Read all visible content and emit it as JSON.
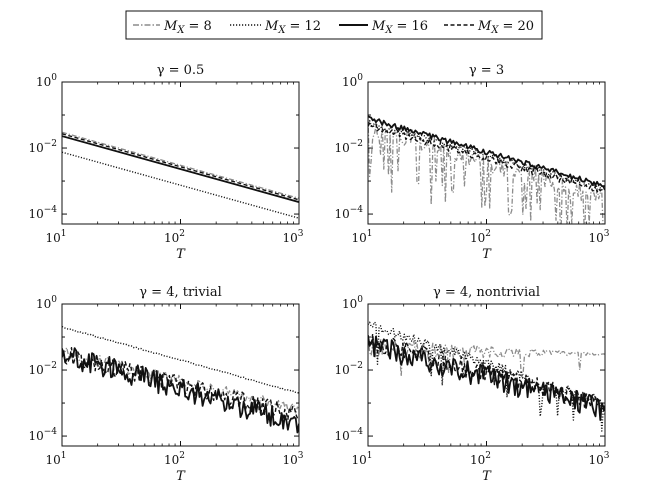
{
  "legend": {
    "entries": [
      {
        "var": "M",
        "sub": "X",
        "value": "= 8",
        "color": "#8c8c8c",
        "style": "dashdot"
      },
      {
        "var": "M",
        "sub": "X",
        "value": "= 12",
        "color": "#111111",
        "style": "dotted"
      },
      {
        "var": "M",
        "sub": "X",
        "value": "= 16",
        "color": "#111111",
        "style": "solid"
      },
      {
        "var": "M",
        "sub": "X",
        "value": "= 20",
        "color": "#111111",
        "style": "dashed"
      }
    ]
  },
  "chart_data": [
    {
      "type": "line",
      "title": "γ = 0.5",
      "xlabel": "T",
      "xscale": "log",
      "yscale": "log",
      "xlim": [
        10,
        1000
      ],
      "ylim": [
        5e-05,
        1
      ],
      "xticks": [
        {
          "base": "10",
          "exp": "1"
        },
        {
          "base": "10",
          "exp": "2"
        },
        {
          "base": "10",
          "exp": "3"
        }
      ],
      "yticks": [
        {
          "base": "10",
          "exp": "0"
        },
        {
          "base": "10",
          "exp": "−2"
        },
        {
          "base": "10",
          "exp": "−4"
        }
      ],
      "series": [
        {
          "name": "M_X = 8",
          "kind": "power",
          "x": [
            10,
            1000
          ],
          "y": [
            0.03,
            0.0003
          ]
        },
        {
          "name": "M_X = 12",
          "kind": "power",
          "x": [
            10,
            1000
          ],
          "y": [
            0.0075,
            7.5e-05
          ]
        },
        {
          "name": "M_X = 16",
          "kind": "power",
          "x": [
            10,
            1000
          ],
          "y": [
            0.023,
            0.00023
          ]
        },
        {
          "name": "M_X = 20",
          "kind": "power",
          "x": [
            10,
            1000
          ],
          "y": [
            0.027,
            0.00027
          ]
        }
      ]
    },
    {
      "type": "line",
      "title": "γ = 3",
      "xlabel": "T",
      "xscale": "log",
      "yscale": "log",
      "xlim": [
        10,
        1000
      ],
      "ylim": [
        5e-05,
        1
      ],
      "xticks": [
        {
          "base": "10",
          "exp": "1"
        },
        {
          "base": "10",
          "exp": "2"
        },
        {
          "base": "10",
          "exp": "3"
        }
      ],
      "yticks": [
        {
          "base": "10",
          "exp": "0"
        },
        {
          "base": "10",
          "exp": "−2"
        },
        {
          "base": "10",
          "exp": "−4"
        }
      ],
      "series": [
        {
          "name": "M_X = 8",
          "kind": "noisy",
          "x": [
            10,
            1000
          ],
          "y": [
            0.045,
            0.0003
          ],
          "noise": 0.3,
          "seed": 11,
          "spikes": 0.2,
          "spikeDepth": 1.7
        },
        {
          "name": "M_X = 12",
          "kind": "noisy",
          "x": [
            10,
            1000
          ],
          "y": [
            0.06,
            0.0006
          ],
          "noise": 0.1,
          "seed": 12,
          "spikes": 0,
          "spikeDepth": 0
        },
        {
          "name": "M_X = 16",
          "kind": "noisy",
          "x": [
            10,
            1000
          ],
          "y": [
            0.08,
            0.0007
          ],
          "noise": 0.08,
          "seed": 13,
          "spikes": 0,
          "spikeDepth": 0
        },
        {
          "name": "M_X = 20",
          "kind": "noisy",
          "x": [
            10,
            1000
          ],
          "y": [
            0.05,
            0.0005
          ],
          "noise": 0.12,
          "seed": 14,
          "spikes": 0,
          "spikeDepth": 0
        }
      ]
    },
    {
      "type": "line",
      "title": "γ = 4, trivial",
      "xlabel": "T",
      "xscale": "log",
      "yscale": "log",
      "xlim": [
        10,
        1000
      ],
      "ylim": [
        5e-05,
        1
      ],
      "xticks": [
        {
          "base": "10",
          "exp": "1"
        },
        {
          "base": "10",
          "exp": "2"
        },
        {
          "base": "10",
          "exp": "3"
        }
      ],
      "yticks": [
        {
          "base": "10",
          "exp": "0"
        },
        {
          "base": "10",
          "exp": "−2"
        },
        {
          "base": "10",
          "exp": "−4"
        }
      ],
      "series": [
        {
          "name": "M_X = 8",
          "kind": "noisy",
          "x": [
            10,
            1000
          ],
          "y": [
            0.035,
            0.0006
          ],
          "noise": 0.18,
          "seed": 21,
          "spikes": 0,
          "spikeDepth": 0
        },
        {
          "name": "M_X = 12",
          "kind": "noisy",
          "x": [
            10,
            1000
          ],
          "y": [
            0.2,
            0.002
          ],
          "noise": 0.02,
          "seed": 22,
          "spikes": 0,
          "spikeDepth": 0
        },
        {
          "name": "M_X = 16",
          "kind": "noisy",
          "x": [
            10,
            1000
          ],
          "y": [
            0.03,
            0.00025
          ],
          "noise": 0.35,
          "seed": 23,
          "spikes": 0,
          "spikeDepth": 0
        },
        {
          "name": "M_X = 20",
          "kind": "noisy",
          "x": [
            10,
            1000
          ],
          "y": [
            0.03,
            0.0004
          ],
          "noise": 0.28,
          "seed": 24,
          "spikes": 0,
          "spikeDepth": 0
        }
      ]
    },
    {
      "type": "line",
      "title": "γ = 4, nontrivial",
      "xlabel": "T",
      "xscale": "log",
      "yscale": "log",
      "xlim": [
        10,
        1000
      ],
      "ylim": [
        5e-05,
        1
      ],
      "xticks": [
        {
          "base": "10",
          "exp": "1"
        },
        {
          "base": "10",
          "exp": "2"
        },
        {
          "base": "10",
          "exp": "3"
        }
      ],
      "yticks": [
        {
          "base": "10",
          "exp": "0"
        },
        {
          "base": "10",
          "exp": "−2"
        },
        {
          "base": "10",
          "exp": "−4"
        }
      ],
      "series": [
        {
          "name": "M_X = 8",
          "kind": "plateau",
          "x": [
            10,
            1000
          ],
          "y": [
            0.05,
            0.03
          ],
          "noise": 0.3,
          "seed": 31,
          "spikes": 0.08,
          "spikeDepth": 0.7
        },
        {
          "name": "M_X = 12",
          "kind": "noisy",
          "x": [
            10,
            1000
          ],
          "y": [
            0.25,
            0.001
          ],
          "noise": 0.15,
          "seed": 32,
          "spikes": 0.04,
          "spikeDepth": 1.2
        },
        {
          "name": "M_X = 16",
          "kind": "noisy",
          "x": [
            10,
            1000
          ],
          "y": [
            0.06,
            0.0006
          ],
          "noise": 0.35,
          "seed": 33,
          "spikes": 0,
          "spikeDepth": 0
        },
        {
          "name": "M_X = 20",
          "kind": "noisy",
          "x": [
            10,
            1000
          ],
          "y": [
            0.08,
            0.0008
          ],
          "noise": 0.3,
          "seed": 34,
          "spikes": 0,
          "spikeDepth": 0
        }
      ]
    }
  ]
}
